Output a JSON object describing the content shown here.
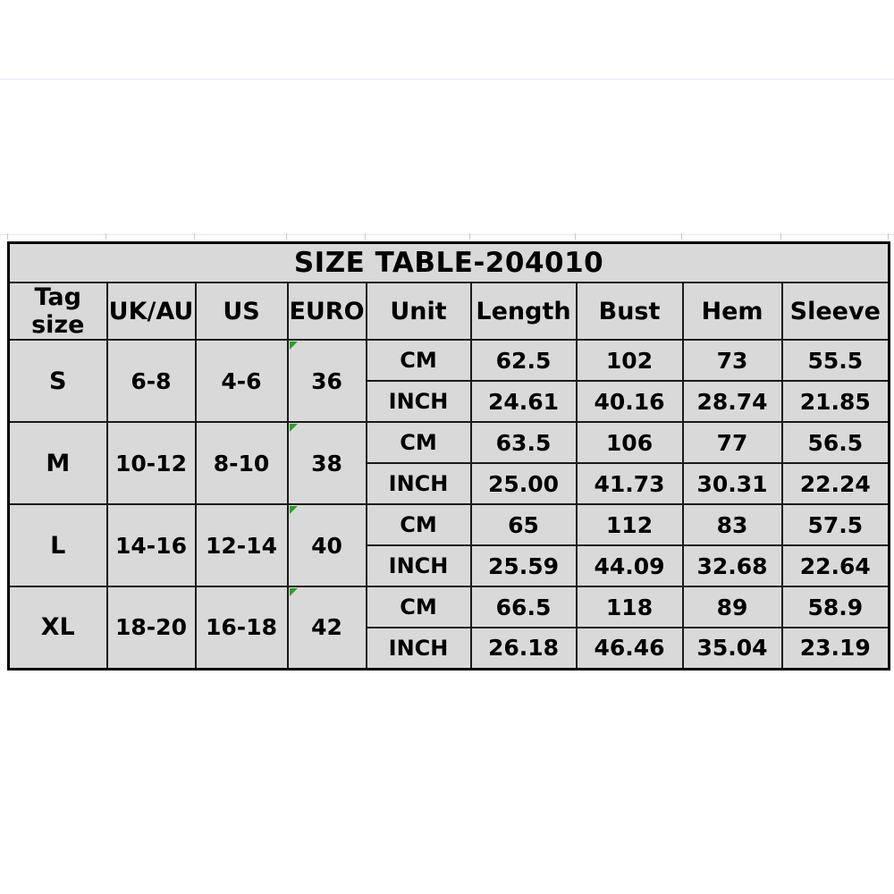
{
  "title": "SIZE TABLE-204010",
  "columns": [
    "Tag size",
    "UK/AU",
    "US",
    "EURO",
    "Unit",
    "Length",
    "Bust",
    "Hem",
    "Sleeve"
  ],
  "unit_labels": {
    "cm": "CM",
    "inch": "INCH"
  },
  "sizes": [
    {
      "tag": "S",
      "uk_au": "6-8",
      "us": "4-6",
      "euro": "36",
      "cm": [
        "62.5",
        "102",
        "73",
        "55.5"
      ],
      "inch": [
        "24.61",
        "40.16",
        "28.74",
        "21.85"
      ]
    },
    {
      "tag": "M",
      "uk_au": "10-12",
      "us": "8-10",
      "euro": "38",
      "cm": [
        "63.5",
        "106",
        "77",
        "56.5"
      ],
      "inch": [
        "25.00",
        "41.73",
        "30.31",
        "22.24"
      ]
    },
    {
      "tag": "L",
      "uk_au": "14-16",
      "us": "12-14",
      "euro": "40",
      "cm": [
        "65",
        "112",
        "83",
        "57.5"
      ],
      "inch": [
        "25.59",
        "44.09",
        "32.68",
        "22.64"
      ]
    },
    {
      "tag": "XL",
      "uk_au": "18-20",
      "us": "16-18",
      "euro": "42",
      "cm": [
        "66.5",
        "118",
        "89",
        "58.9"
      ],
      "inch": [
        "26.18",
        "46.46",
        "35.04",
        "23.19"
      ]
    }
  ],
  "colors": {
    "page_bg": "#ffffff",
    "title_bg": "#878787",
    "cell_bg": "#d9d9d9",
    "border": "#1a1a1a",
    "text": "#000000",
    "error_triangle_green": "#2f9e2f"
  },
  "chart_data": {
    "type": "table",
    "title": "SIZE TABLE-204010",
    "columns": [
      "Tag size",
      "UK/AU",
      "US",
      "EURO",
      "Unit",
      "Length",
      "Bust",
      "Hem",
      "Sleeve"
    ],
    "rows": [
      [
        "S",
        "6-8",
        "4-6",
        "36",
        "CM",
        "62.5",
        "102",
        "73",
        "55.5"
      ],
      [
        "S",
        "6-8",
        "4-6",
        "36",
        "INCH",
        "24.61",
        "40.16",
        "28.74",
        "21.85"
      ],
      [
        "M",
        "10-12",
        "8-10",
        "38",
        "CM",
        "63.5",
        "106",
        "77",
        "56.5"
      ],
      [
        "M",
        "10-12",
        "8-10",
        "38",
        "INCH",
        "25.00",
        "41.73",
        "30.31",
        "22.24"
      ],
      [
        "L",
        "14-16",
        "12-14",
        "40",
        "CM",
        "65",
        "112",
        "83",
        "57.5"
      ],
      [
        "L",
        "14-16",
        "12-14",
        "40",
        "INCH",
        "25.59",
        "44.09",
        "32.68",
        "22.64"
      ],
      [
        "XL",
        "18-20",
        "16-18",
        "42",
        "CM",
        "66.5",
        "118",
        "89",
        "58.9"
      ],
      [
        "XL",
        "18-20",
        "16-18",
        "42",
        "INCH",
        "26.18",
        "46.46",
        "35.04",
        "23.19"
      ]
    ]
  }
}
